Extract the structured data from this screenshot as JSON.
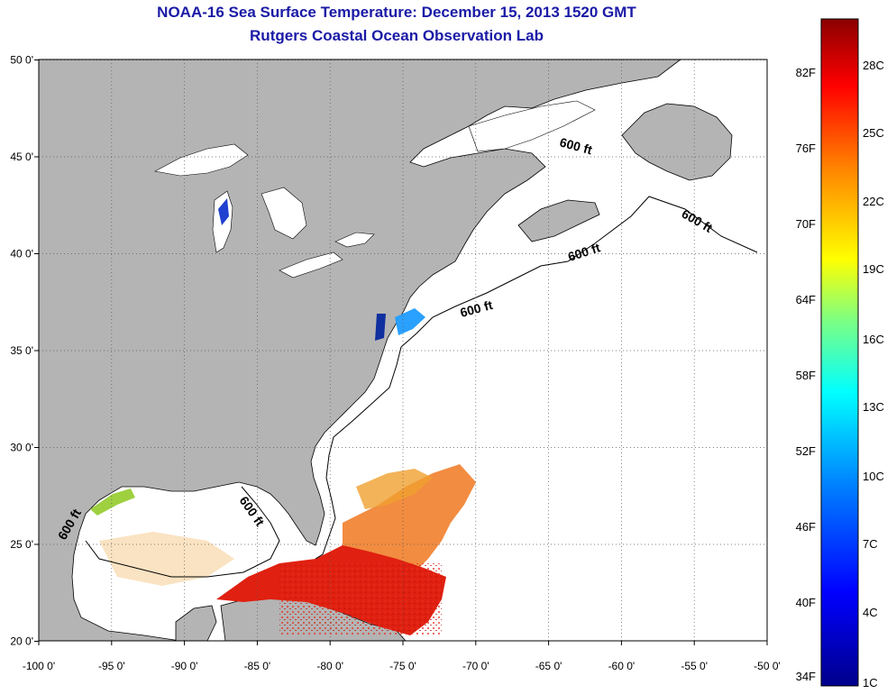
{
  "header": {
    "title": "NOAA-16 Sea Surface Temperature:  December 15, 2013 1520 GMT",
    "subtitle": "Rutgers Coastal Ocean Observation Lab"
  },
  "axes": {
    "x_ticks": [
      "-100 0'",
      "-95 0'",
      "-90 0'",
      "-85 0'",
      "-80 0'",
      "-75 0'",
      "-70 0'",
      "-65 0'",
      "-60 0'",
      "-55 0'",
      "-50 0'"
    ],
    "y_ticks": [
      "50 0'",
      "45 0'",
      "40 0'",
      "35 0'",
      "30 0'",
      "25 0'",
      "20 0'"
    ]
  },
  "contour_labels": [
    "600 ft",
    "600 ft",
    "600 ft",
    "600 ft",
    "600 ft",
    "600 ft"
  ],
  "colorbar": {
    "f_labels": [
      "82F",
      "76F",
      "70F",
      "64F",
      "58F",
      "52F",
      "46F",
      "40F",
      "34F"
    ],
    "c_labels": [
      "28C",
      "25C",
      "22C",
      "19C",
      "16C",
      "13C",
      "10C",
      "7C",
      "4C",
      "1C"
    ],
    "colors": [
      "#00008b",
      "#0000ff",
      "#0080ff",
      "#00ffff",
      "#80ff80",
      "#ffff00",
      "#ff8000",
      "#ff0000",
      "#8b0000"
    ]
  },
  "colors": {
    "land": "#b4b4b4",
    "ocean": "#ffffff",
    "sst_warm": "#e02010",
    "sst_orange": "#f07820",
    "sst_cool": "#2050e0"
  }
}
